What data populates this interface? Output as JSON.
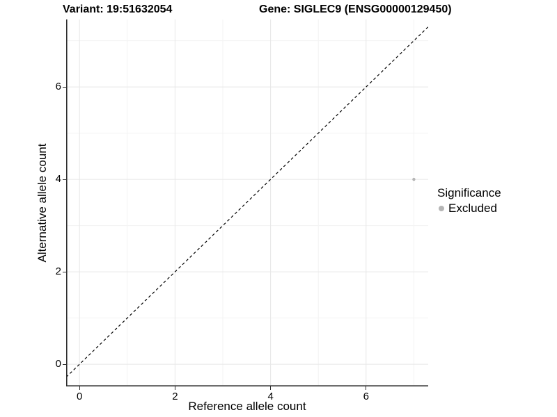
{
  "header": {
    "variant_title": "Variant: 19:51632054",
    "gene_title": "Gene: SIGLEC9 (ENSG00000129450)"
  },
  "chart_data": {
    "type": "scatter",
    "titles": [
      "Variant: 19:51632054",
      "Gene: SIGLEC9 (ENSG00000129450)"
    ],
    "xlabel": "Reference allele count",
    "ylabel": "Alternative allele count",
    "xlim": [
      -0.28,
      7.3
    ],
    "ylim": [
      -0.48,
      7.46
    ],
    "x_ticks": [
      0,
      2,
      4,
      6
    ],
    "y_ticks": [
      0,
      2,
      4,
      6
    ],
    "x_minor_gridlines": [
      1,
      3,
      5,
      7
    ],
    "y_minor_gridlines": [
      1,
      3,
      5,
      7
    ],
    "grid": "major+minor on white background",
    "legend_position": "right",
    "legend_title": "Significance",
    "series": [
      {
        "name": "Excluded",
        "color": "#b5b5b5",
        "points": [
          {
            "x": 7,
            "y": 4
          }
        ]
      }
    ],
    "reference_line": {
      "type": "identity",
      "slope": 1,
      "intercept": 0,
      "style": "dashed",
      "color": "#000000"
    }
  },
  "colors": {
    "background": "#ffffff",
    "axis_line": "#2f2f2f",
    "major_gridline": "#e7e7e7",
    "minor_gridline": "#f3f3f3",
    "point": "#b5b5b5",
    "text": "#000000"
  }
}
